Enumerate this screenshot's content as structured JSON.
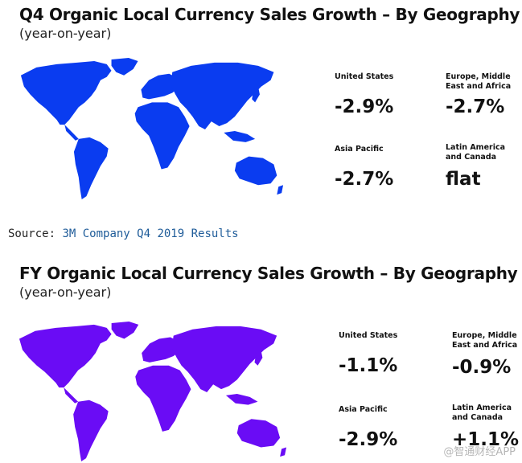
{
  "q4": {
    "title": "Q4 Organic Local Currency Sales Growth – By Geography",
    "subtitle": "(year-on-year)",
    "map_color": "#0a3cf0",
    "regions": [
      {
        "label": "United States",
        "value": "-2.9%"
      },
      {
        "label": "Europe, Middle East and Africa",
        "value": "-2.7%"
      },
      {
        "label": "Asia Pacific",
        "value": "-2.7%"
      },
      {
        "label": "Latin America and Canada",
        "value": "flat"
      }
    ]
  },
  "source": {
    "label": "Source: ",
    "link_text": "3M Company Q4 2019 Results"
  },
  "fy": {
    "title": "FY Organic Local Currency Sales Growth – By Geography",
    "subtitle": "(year-on-year)",
    "map_color": "#6a0cf5",
    "regions": [
      {
        "label": "United States",
        "value": "-1.1%"
      },
      {
        "label": "Europe, Middle East and Africa",
        "value": "-0.9%"
      },
      {
        "label": "Asia Pacific",
        "value": "-2.9%"
      },
      {
        "label": "Latin America and Canada",
        "value": "+1.1%"
      }
    ]
  },
  "watermark": "@智通财经APP"
}
